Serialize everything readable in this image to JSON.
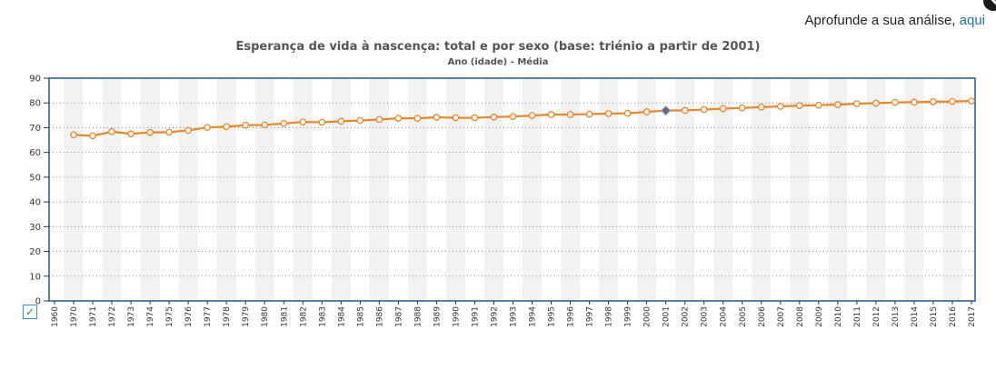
{
  "header": {
    "prefix": "Aprofunde a sua análise, ",
    "link": "aqui"
  },
  "chart_data": {
    "type": "line",
    "title": "Esperança de vida à nascença: total e por sexo (base: triénio a partir de 2001)",
    "subtitle": "Ano (idade) - Média",
    "xlabel": "",
    "ylabel": "",
    "ylim": [
      0,
      90
    ],
    "yticks": [
      "0",
      "10",
      "20",
      "30",
      "40",
      "50",
      "60",
      "70",
      "80",
      "90"
    ],
    "categories": [
      "1960",
      "1970",
      "1971",
      "1972",
      "1973",
      "1974",
      "1975",
      "1976",
      "1977",
      "1978",
      "1979",
      "1980",
      "1981",
      "1982",
      "1983",
      "1984",
      "1985",
      "1986",
      "1987",
      "1988",
      "1989",
      "1990",
      "1991",
      "1992",
      "1993",
      "1994",
      "1995",
      "1996",
      "1997",
      "1998",
      "1999",
      "2000",
      "2001",
      "2002",
      "2003",
      "2004",
      "2005",
      "2006",
      "2007",
      "2008",
      "2009",
      "2010",
      "2011",
      "2012",
      "2013",
      "2014",
      "2015",
      "2016",
      "2017"
    ],
    "series": [
      {
        "values": [
          null,
          67.1,
          66.7,
          68.4,
          67.5,
          68.1,
          68.2,
          68.9,
          70.1,
          70.4,
          71.0,
          71.1,
          71.7,
          72.3,
          72.2,
          72.6,
          72.9,
          73.3,
          73.8,
          73.8,
          74.2,
          74.0,
          74.0,
          74.3,
          74.5,
          74.9,
          75.3,
          75.3,
          75.5,
          75.7,
          75.8,
          76.4,
          76.9,
          77.0,
          77.3,
          77.7,
          78.0,
          78.3,
          78.6,
          78.9,
          79.1,
          79.3,
          79.7,
          79.9,
          80.2,
          80.3,
          80.5,
          80.6,
          80.8
        ],
        "highlighted": "2001",
        "color": "#e8862a"
      }
    ],
    "grid": true,
    "legend": "none"
  },
  "colors": {
    "line": "#e8862a",
    "frame": "#1c5a96",
    "band": "#f2f2f2",
    "grid": "#888888",
    "highlight": "#5a6f80"
  },
  "controls": {
    "checkbox_icon": "check-icon"
  }
}
